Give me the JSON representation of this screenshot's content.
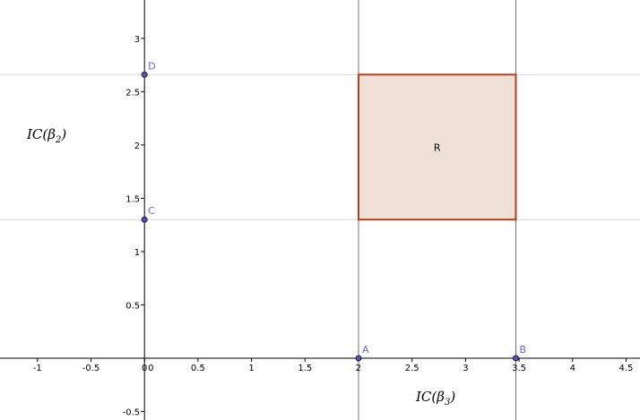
{
  "plot": {
    "x_range": [
      -1.35,
      4.63
    ],
    "y_range": [
      -0.58,
      3.36
    ],
    "x_ticks": [
      -1,
      -0.5,
      0,
      0.5,
      1,
      1.5,
      2,
      2.5,
      3,
      3.5,
      4,
      4.5
    ],
    "x_tick_labels": [
      "-1",
      "-0.5",
      "0",
      "0.5",
      "1",
      "1.5",
      "2",
      "2.5",
      "3",
      "3.5",
      "4",
      "4.5"
    ],
    "y_ticks": [
      -0.5,
      0.5,
      1,
      1.5,
      2,
      2.5,
      3
    ],
    "y_tick_labels": [
      "-0.5",
      "0.5",
      "1",
      "1.5",
      "2",
      "2.5",
      "3"
    ],
    "origin_label": "0"
  },
  "points": [
    {
      "name": "A",
      "x": 2.0,
      "y": 0.0
    },
    {
      "name": "B",
      "x": 3.47,
      "y": 0.0
    },
    {
      "name": "C",
      "x": 0.0,
      "y": 1.3
    },
    {
      "name": "D",
      "x": 0.0,
      "y": 2.66
    }
  ],
  "vertical_lines": [
    2.0,
    3.47
  ],
  "horizontal_lines": [
    1.3,
    2.66
  ],
  "region": {
    "label": "R",
    "x": [
      2.0,
      3.47
    ],
    "y": [
      1.3,
      2.66
    ]
  },
  "axis_titles": {
    "y": {
      "base": "IC(β",
      "sub": "2",
      "close": ")"
    },
    "x": {
      "base": "IC(β",
      "sub": "3",
      "close": ")"
    }
  },
  "colors": {
    "point_fill": "#5050d0",
    "point_label": "#6666dd",
    "region_fill": "#f0e1d8",
    "region_stroke": "#b5401d",
    "guide_vertical": "#707070",
    "guide_horizontal": "#d8d8d8"
  }
}
